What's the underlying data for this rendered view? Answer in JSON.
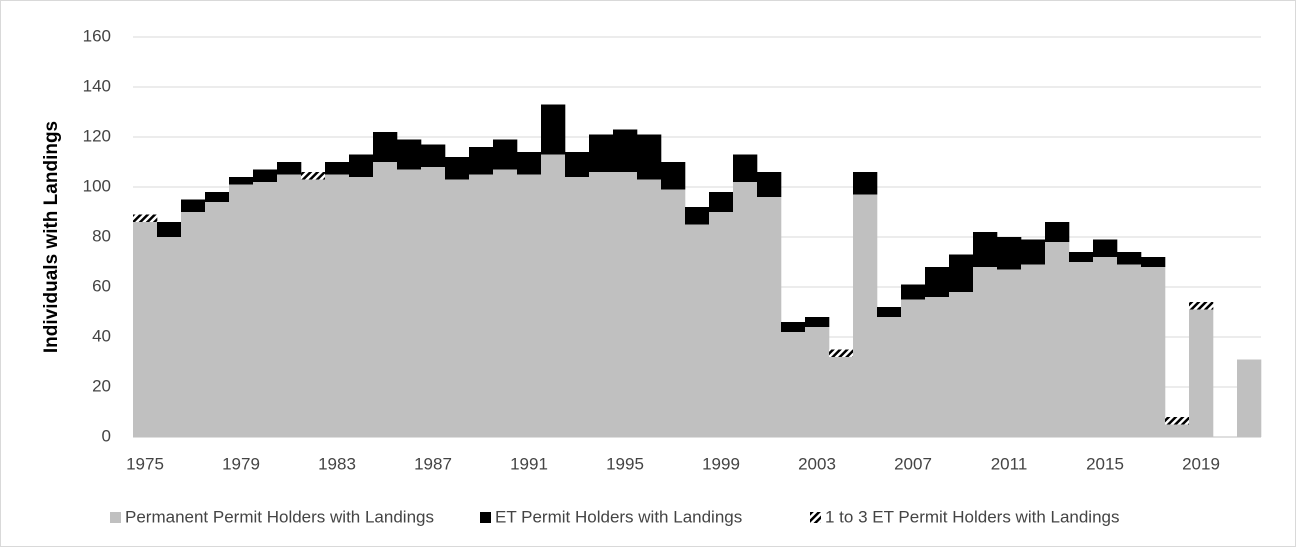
{
  "chart_data": {
    "type": "stacked_bar",
    "ylabel": "Individuals with Landings",
    "categories": [
      "1975",
      null,
      null,
      null,
      "1979",
      null,
      null,
      null,
      "1983",
      null,
      null,
      null,
      "1987",
      null,
      null,
      null,
      "1991",
      null,
      null,
      null,
      "1995",
      null,
      null,
      null,
      "1999",
      null,
      null,
      null,
      "2003",
      null,
      null,
      null,
      "2007",
      null,
      null,
      null,
      "2011",
      null,
      null,
      null,
      "2015",
      null,
      null,
      null,
      "2019",
      null,
      null
    ],
    "series": [
      {
        "name": "Permanent Permit Holders with Landings",
        "color": "#c0c0c0",
        "pattern": "solid",
        "values": [
          86,
          80,
          90,
          94,
          101,
          102,
          105,
          103,
          105,
          104,
          110,
          107,
          108,
          103,
          105,
          107,
          105,
          113,
          104,
          106,
          106,
          103,
          99,
          85,
          90,
          102,
          96,
          42,
          44,
          32,
          97,
          48,
          55,
          56,
          58,
          68,
          67,
          69,
          78,
          70,
          72,
          69,
          68,
          5,
          51,
          0,
          31
        ]
      },
      {
        "name": "ET Permit Holders with Landings",
        "color": "#000000",
        "pattern": "solid",
        "values": [
          0,
          6,
          5,
          4,
          3,
          5,
          5,
          0,
          5,
          9,
          12,
          12,
          9,
          9,
          11,
          12,
          9,
          20,
          10,
          15,
          17,
          18,
          11,
          7,
          8,
          11,
          10,
          4,
          4,
          0,
          9,
          4,
          6,
          12,
          15,
          14,
          13,
          10,
          8,
          4,
          7,
          5,
          4,
          0,
          0,
          0,
          0
        ]
      },
      {
        "name": "1 to 3 ET Permit Holders with Landings",
        "color": "#000000",
        "pattern": "hatch",
        "values": [
          3,
          0,
          0,
          0,
          0,
          0,
          0,
          3,
          0,
          0,
          0,
          0,
          0,
          0,
          0,
          0,
          0,
          0,
          0,
          0,
          0,
          0,
          0,
          0,
          0,
          0,
          0,
          0,
          0,
          3,
          0,
          0,
          0,
          0,
          0,
          0,
          0,
          0,
          0,
          0,
          0,
          0,
          0,
          3,
          3,
          0,
          0
        ]
      }
    ],
    "ylim": [
      0,
      160
    ],
    "yticks": [
      0,
      20,
      40,
      60,
      80,
      100,
      120,
      140,
      160
    ],
    "grid": true,
    "legend": "bottom"
  }
}
